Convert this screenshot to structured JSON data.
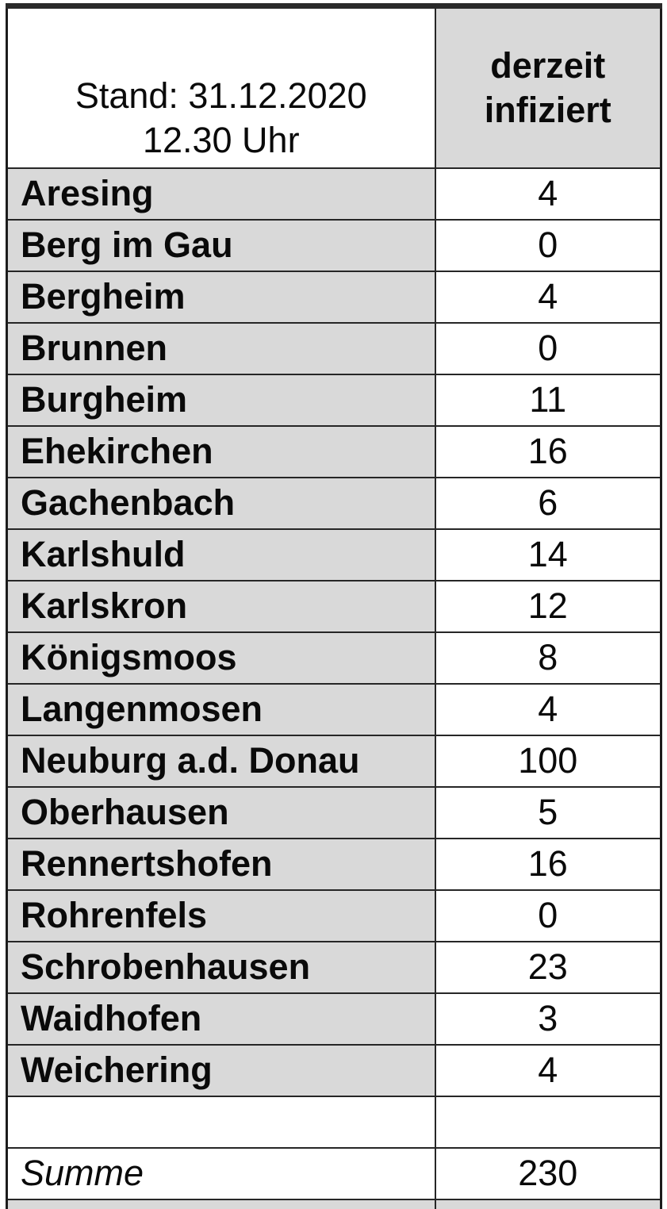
{
  "colors": {
    "cell_gray": "#d9d9d9",
    "cell_white": "#ffffff",
    "border_dark": "#262626",
    "text": "#0a0a0a"
  },
  "table": {
    "header": {
      "date_line1": "Stand: 31.12.2020",
      "date_line2": "12.30 Uhr",
      "value_line1": "derzeit",
      "value_line2": "infiziert"
    },
    "rows": [
      {
        "name": "Aresing",
        "value": "4"
      },
      {
        "name": "Berg im Gau",
        "value": "0"
      },
      {
        "name": "Bergheim",
        "value": "4"
      },
      {
        "name": "Brunnen",
        "value": "0"
      },
      {
        "name": "Burgheim",
        "value": "11"
      },
      {
        "name": "Ehekirchen",
        "value": "16"
      },
      {
        "name": "Gachenbach",
        "value": "6"
      },
      {
        "name": "Karlshuld",
        "value": "14"
      },
      {
        "name": "Karlskron",
        "value": "12"
      },
      {
        "name": "Königsmoos",
        "value": "8"
      },
      {
        "name": "Langenmosen",
        "value": "4"
      },
      {
        "name": "Neuburg a.d. Donau",
        "value": "100"
      },
      {
        "name": "Oberhausen",
        "value": "5"
      },
      {
        "name": "Rennertshofen",
        "value": "16"
      },
      {
        "name": "Rohrenfels",
        "value": "0"
      },
      {
        "name": "Schrobenhausen",
        "value": "23"
      },
      {
        "name": "Waidhofen",
        "value": "3"
      },
      {
        "name": "Weichering",
        "value": "4"
      }
    ],
    "summary": {
      "label": "Summe",
      "value": "230"
    }
  },
  "chart_data": {
    "type": "table",
    "title": "Stand: 31.12.2020 12.30 Uhr",
    "columns": [
      "Stand: 31.12.2020 12.30 Uhr",
      "derzeit infiziert"
    ],
    "rows": [
      [
        "Aresing",
        4
      ],
      [
        "Berg im Gau",
        0
      ],
      [
        "Bergheim",
        4
      ],
      [
        "Brunnen",
        0
      ],
      [
        "Burgheim",
        11
      ],
      [
        "Ehekirchen",
        16
      ],
      [
        "Gachenbach",
        6
      ],
      [
        "Karlshuld",
        14
      ],
      [
        "Karlskron",
        12
      ],
      [
        "Königsmoos",
        8
      ],
      [
        "Langenmosen",
        4
      ],
      [
        "Neuburg a.d. Donau",
        100
      ],
      [
        "Oberhausen",
        5
      ],
      [
        "Rennertshofen",
        16
      ],
      [
        "Rohrenfels",
        0
      ],
      [
        "Schrobenhausen",
        23
      ],
      [
        "Waidhofen",
        3
      ],
      [
        "Weichering",
        4
      ]
    ],
    "summary_row": [
      "Summe",
      230
    ]
  }
}
